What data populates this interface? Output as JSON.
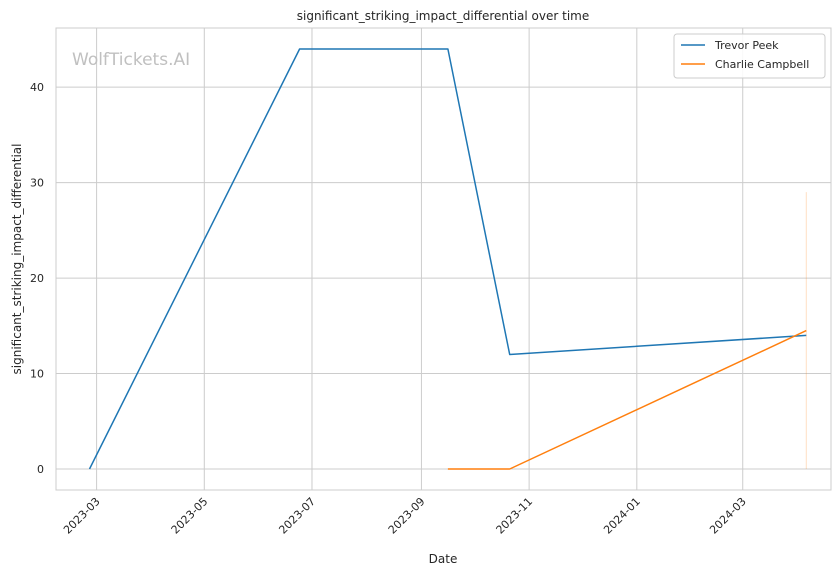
{
  "chart_data": {
    "type": "line",
    "title": "significant_striking_impact_differential over time",
    "xlabel": "Date",
    "ylabel": "significant_striking_impact_differential",
    "watermark": "WolfTickets.AI",
    "grid": true,
    "legend_position": "top-right",
    "x_ticks": [
      "2023-03",
      "2023-05",
      "2023-07",
      "2023-09",
      "2023-11",
      "2024-01",
      "2024-03"
    ],
    "y_ticks": [
      0,
      10,
      20,
      30,
      40
    ],
    "xlim": [
      "2023-02-06",
      "2024-04-20"
    ],
    "ylim": [
      -2.2,
      46.2
    ],
    "series": [
      {
        "name": "Trevor Peek",
        "color": "#1f77b4",
        "points": [
          {
            "x": "2023-02-25",
            "y": 0
          },
          {
            "x": "2023-06-24",
            "y": 44
          },
          {
            "x": "2023-09-16",
            "y": 44
          },
          {
            "x": "2023-10-21",
            "y": 12
          },
          {
            "x": "2024-04-06",
            "y": 14
          }
        ]
      },
      {
        "name": "Charlie Campbell",
        "color": "#ff7f0e",
        "points": [
          {
            "x": "2023-09-16",
            "y": 0
          },
          {
            "x": "2023-10-21",
            "y": 0
          },
          {
            "x": "2024-04-06",
            "y": 14.5
          }
        ],
        "band": {
          "x": "2024-04-06",
          "y_low": 0,
          "y_high": 29
        }
      }
    ]
  }
}
